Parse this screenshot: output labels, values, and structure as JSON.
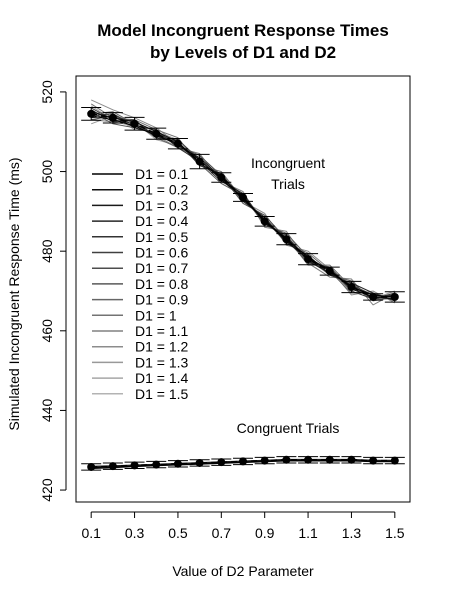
{
  "chart_data": {
    "type": "line",
    "title_line1": "Model Incongruent Response Times",
    "title_line2": "by Levels of D1 and D2",
    "xlabel": "Value of D2 Parameter",
    "ylabel": "Simulated Incongruent Response Time (ms)",
    "x": [
      0.1,
      0.2,
      0.3,
      0.4,
      0.5,
      0.6,
      0.7,
      0.8,
      0.9,
      1.0,
      1.1,
      1.2,
      1.3,
      1.4,
      1.5
    ],
    "x_tick_values": [
      0.1,
      0.3,
      0.5,
      0.7,
      0.9,
      1.1,
      1.3,
      1.5
    ],
    "x_tick_labels": [
      "0.1",
      "0.3",
      "0.5",
      "0.7",
      "0.9",
      "1.1",
      "1.3",
      "1.5"
    ],
    "y_tick_values": [
      420,
      440,
      460,
      480,
      500,
      520
    ],
    "y_tick_labels": [
      "420",
      "440",
      "460",
      "480",
      "500",
      "520"
    ],
    "xlim": [
      0.03,
      1.57
    ],
    "ylim": [
      417,
      524
    ],
    "annotations": [
      {
        "id": "incongruent",
        "line1": "Incongruent",
        "line2": "Trials"
      },
      {
        "id": "congruent",
        "line1": "Congruent Trials"
      }
    ],
    "mean_series": [
      {
        "id": "incongruent",
        "values": [
          514.5,
          513.5,
          512.0,
          509.5,
          507.0,
          502.5,
          498.5,
          493.5,
          487.5,
          483.0,
          478.0,
          475.0,
          471.0,
          468.5,
          468.5
        ],
        "errors": [
          1.6,
          1.3,
          1.6,
          1.4,
          1.3,
          1.8,
          1.2,
          1.0,
          1.2,
          1.4,
          1.4,
          1.0,
          1.4,
          0.8,
          1.3
        ]
      },
      {
        "id": "congruent",
        "values": [
          425.8,
          426.0,
          426.2,
          426.4,
          426.6,
          426.8,
          427.0,
          427.2,
          427.4,
          427.6,
          427.6,
          427.6,
          427.6,
          427.4,
          427.4
        ],
        "errors": [
          0.8,
          0.8,
          0.8,
          0.8,
          0.8,
          0.8,
          0.8,
          0.8,
          0.8,
          0.8,
          0.8,
          0.8,
          0.8,
          0.8,
          0.8
        ]
      }
    ],
    "series": [
      {
        "name": "D1 = 0.1",
        "color": "#000000",
        "incongruent": [
          514.0,
          513.0,
          511.5,
          509.0,
          507.0,
          503.0,
          498.0,
          493.5,
          487.5,
          483.0,
          478.5,
          475.0,
          471.0,
          469.0,
          468.5
        ],
        "congruent": [
          425.6,
          425.8,
          426.0,
          426.2,
          426.4,
          426.6,
          426.8,
          427.0,
          427.2,
          427.4,
          427.4,
          427.4,
          427.4,
          427.2,
          427.2
        ]
      },
      {
        "name": "D1 = 0.2",
        "color": "#0d0d0d",
        "incongruent": [
          515.0,
          513.5,
          512.5,
          510.0,
          507.5,
          502.0,
          499.0,
          493.0,
          488.0,
          482.5,
          478.0,
          475.5,
          470.5,
          468.5,
          468.0
        ],
        "congruent": [
          425.4,
          425.6,
          425.9,
          426.1,
          426.3,
          426.5,
          426.7,
          426.9,
          427.1,
          427.3,
          427.3,
          427.3,
          427.3,
          427.1,
          427.1
        ]
      },
      {
        "name": "D1 = 0.3",
        "color": "#1a1a1a",
        "incongruent": [
          513.5,
          514.0,
          511.0,
          509.5,
          506.5,
          503.5,
          498.5,
          494.0,
          487.0,
          483.5,
          477.5,
          474.5,
          471.5,
          468.0,
          469.0
        ],
        "congruent": [
          426.0,
          426.1,
          426.3,
          426.5,
          426.7,
          426.9,
          427.1,
          427.3,
          427.5,
          427.7,
          427.7,
          427.7,
          427.7,
          427.5,
          427.5
        ]
      },
      {
        "name": "D1 = 0.4",
        "color": "#262626",
        "incongruent": [
          515.5,
          512.5,
          513.0,
          508.5,
          507.5,
          501.5,
          499.5,
          492.5,
          488.5,
          482.0,
          479.0,
          474.0,
          472.0,
          469.5,
          467.5
        ],
        "congruent": [
          425.9,
          426.0,
          426.2,
          426.4,
          426.5,
          426.7,
          426.9,
          427.1,
          427.3,
          427.5,
          427.5,
          427.6,
          427.5,
          427.3,
          427.3
        ]
      },
      {
        "name": "D1 = 0.5",
        "color": "#333333",
        "incongruent": [
          514.0,
          514.5,
          511.5,
          510.5,
          506.0,
          502.5,
          497.5,
          494.5,
          487.0,
          484.0,
          477.5,
          475.5,
          470.0,
          468.0,
          469.5
        ],
        "congruent": [
          425.7,
          425.9,
          426.1,
          426.3,
          426.5,
          426.7,
          426.9,
          427.1,
          427.3,
          427.5,
          427.6,
          427.5,
          427.6,
          427.4,
          427.4
        ]
      },
      {
        "name": "D1 = 0.6",
        "color": "#404040",
        "incongruent": [
          516.0,
          513.0,
          512.0,
          509.0,
          508.0,
          503.0,
          498.0,
          493.0,
          488.0,
          482.5,
          478.5,
          474.5,
          471.5,
          469.0,
          468.0
        ],
        "congruent": [
          425.8,
          426.0,
          426.2,
          426.4,
          426.6,
          426.8,
          427.0,
          427.2,
          427.4,
          427.6,
          427.6,
          427.6,
          427.6,
          427.4,
          427.4
        ]
      },
      {
        "name": "D1 = 0.7",
        "color": "#4d4d4d",
        "incongruent": [
          513.0,
          514.0,
          512.5,
          510.0,
          506.5,
          504.0,
          499.0,
          492.0,
          489.0,
          483.0,
          477.0,
          476.0,
          470.5,
          468.5,
          469.0
        ],
        "congruent": [
          425.8,
          426.0,
          426.2,
          426.4,
          426.6,
          426.8,
          427.0,
          427.2,
          427.4,
          427.6,
          427.6,
          427.6,
          427.6,
          427.4,
          427.4
        ]
      },
      {
        "name": "D1 = 0.8",
        "color": "#595959",
        "incongruent": [
          515.0,
          512.0,
          511.0,
          509.5,
          507.5,
          502.0,
          497.0,
          494.0,
          486.5,
          484.5,
          478.5,
          474.0,
          472.5,
          467.5,
          468.5
        ],
        "congruent": [
          425.8,
          426.0,
          426.2,
          426.4,
          426.6,
          426.8,
          427.0,
          427.2,
          427.4,
          427.6,
          427.6,
          427.6,
          427.6,
          427.4,
          427.4
        ]
      },
      {
        "name": "D1 = 0.9",
        "color": "#666666",
        "incongruent": [
          514.5,
          515.0,
          512.0,
          508.5,
          506.0,
          503.5,
          498.5,
          493.5,
          488.0,
          482.0,
          479.5,
          475.0,
          469.5,
          469.5,
          467.5
        ],
        "congruent": [
          425.8,
          426.0,
          426.2,
          426.4,
          426.6,
          426.8,
          427.0,
          427.2,
          427.4,
          427.6,
          427.6,
          427.6,
          427.6,
          427.4,
          427.4
        ]
      },
      {
        "name": "D1 = 1",
        "color": "#737373",
        "incongruent": [
          517.0,
          513.5,
          513.0,
          510.5,
          508.5,
          501.5,
          500.0,
          493.0,
          487.5,
          483.5,
          476.5,
          476.5,
          471.0,
          468.0,
          468.0
        ],
        "congruent": [
          425.8,
          426.0,
          426.2,
          426.4,
          426.6,
          426.8,
          427.0,
          427.2,
          427.4,
          427.6,
          427.6,
          427.6,
          427.6,
          427.4,
          427.4
        ]
      },
      {
        "name": "D1 = 1.1",
        "color": "#808080",
        "incongruent": [
          513.0,
          512.5,
          511.5,
          509.0,
          506.0,
          504.5,
          497.5,
          495.0,
          486.0,
          485.0,
          477.0,
          473.5,
          473.0,
          466.5,
          469.5
        ],
        "congruent": [
          425.8,
          426.0,
          426.2,
          426.4,
          426.6,
          426.8,
          427.0,
          427.2,
          427.4,
          427.6,
          427.6,
          427.6,
          427.6,
          427.4,
          427.4
        ]
      },
      {
        "name": "D1 = 1.2",
        "color": "#8c8c8c",
        "incongruent": [
          518.0,
          515.5,
          513.5,
          511.0,
          507.0,
          502.5,
          499.0,
          492.5,
          489.5,
          481.5,
          480.0,
          475.5,
          469.0,
          470.0,
          467.0
        ],
        "congruent": [
          425.8,
          426.0,
          426.2,
          426.4,
          426.6,
          426.8,
          427.0,
          427.2,
          427.4,
          427.6,
          427.6,
          427.6,
          427.6,
          427.4,
          427.4
        ]
      },
      {
        "name": "D1 = 1.3",
        "color": "#999999",
        "incongruent": [
          512.0,
          514.0,
          510.5,
          510.0,
          508.0,
          503.0,
          498.0,
          494.0,
          487.0,
          483.5,
          478.0,
          474.0,
          472.0,
          468.0,
          470.0
        ],
        "congruent": [
          425.8,
          426.0,
          426.2,
          426.4,
          426.6,
          426.8,
          427.0,
          427.2,
          427.4,
          427.6,
          427.6,
          427.6,
          427.6,
          427.4,
          427.4
        ]
      },
      {
        "name": "D1 = 1.4",
        "color": "#a6a6a6",
        "incongruent": [
          516.5,
          513.0,
          512.5,
          508.0,
          506.5,
          502.0,
          498.5,
          493.0,
          488.5,
          482.5,
          477.5,
          476.0,
          470.5,
          469.0,
          468.0
        ],
        "congruent": [
          425.8,
          426.0,
          426.2,
          426.4,
          426.6,
          426.8,
          427.0,
          427.2,
          427.4,
          427.6,
          427.6,
          427.6,
          427.6,
          427.4,
          427.4
        ]
      },
      {
        "name": "D1 = 1.5",
        "color": "#b3b3b3",
        "incongruent": [
          514.0,
          514.5,
          512.0,
          509.5,
          507.0,
          503.0,
          499.0,
          493.5,
          487.5,
          483.0,
          478.5,
          475.0,
          471.0,
          468.5,
          468.5
        ],
        "congruent": [
          425.8,
          426.0,
          426.2,
          426.4,
          426.6,
          426.8,
          427.0,
          427.2,
          427.4,
          427.6,
          427.6,
          427.6,
          427.6,
          427.4,
          427.4
        ]
      }
    ],
    "legend_placement": "left-center",
    "grid": false
  }
}
